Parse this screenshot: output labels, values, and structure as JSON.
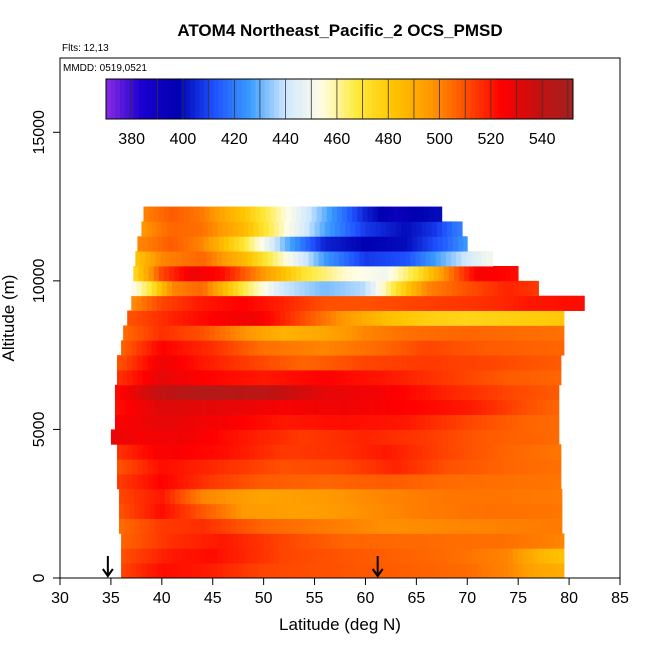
{
  "chart_data": {
    "type": "heatmap",
    "title": "ATOM4 Northeast_Pacific_2 OCS_PMSD",
    "flights_note": "Flts: 12,13",
    "date_note": "MMDD: 0519,0521",
    "xlabel": "Latitude (deg N)",
    "ylabel": "Altitude (m)",
    "xlim": [
      30,
      85
    ],
    "ylim": [
      0,
      17500
    ],
    "x_ticks": [
      "30",
      "35",
      "40",
      "45",
      "50",
      "55",
      "60",
      "65",
      "70",
      "75",
      "80",
      "85"
    ],
    "y_ticks": [
      "0",
      "5000",
      "10000",
      "15000"
    ],
    "y_tick_values": [
      0,
      5000,
      10000,
      15000
    ],
    "colorbar": {
      "min": 370,
      "max": 552,
      "tick_labels": [
        "380",
        "400",
        "420",
        "440",
        "460",
        "480",
        "500",
        "520",
        "540"
      ],
      "tick_values": [
        380,
        400,
        420,
        440,
        460,
        480,
        500,
        520,
        540
      ],
      "colors": [
        "#8a2be2",
        "#1a00d0",
        "#0000b0",
        "#1e50ff",
        "#3a9bff",
        "#cfe8ff",
        "#fffde6",
        "#ffe93a",
        "#ffc400",
        "#ff9a00",
        "#ff5000",
        "#ff0000",
        "#c51010",
        "#a52020"
      ]
    },
    "arrows_latitude": [
      34.7,
      61.2
    ],
    "layers": [
      {
        "alt_bottom": 0,
        "alt_top": 500,
        "lat_start": 36.0,
        "lat_end": 79.5,
        "profile": [
          [
            36,
            512
          ],
          [
            40,
            522
          ],
          [
            44,
            520
          ],
          [
            50,
            512
          ],
          [
            56,
            510
          ],
          [
            62,
            508
          ],
          [
            70,
            505
          ],
          [
            74,
            500
          ],
          [
            77,
            492
          ],
          [
            79.5,
            490
          ]
        ]
      },
      {
        "alt_bottom": 500,
        "alt_top": 1000,
        "lat_start": 36.0,
        "lat_end": 79.5,
        "profile": [
          [
            36,
            510
          ],
          [
            41,
            520
          ],
          [
            45,
            522
          ],
          [
            52,
            512
          ],
          [
            60,
            508
          ],
          [
            68,
            505
          ],
          [
            74,
            500
          ],
          [
            77,
            488
          ],
          [
            79.5,
            482
          ]
        ]
      },
      {
        "alt_bottom": 1000,
        "alt_top": 1500,
        "lat_start": 36.0,
        "lat_end": 79.5,
        "profile": [
          [
            36,
            506
          ],
          [
            41,
            516
          ],
          [
            46,
            520
          ],
          [
            52,
            512
          ],
          [
            58,
            506
          ],
          [
            66,
            505
          ],
          [
            74,
            504
          ],
          [
            79.5,
            500
          ]
        ]
      },
      {
        "alt_bottom": 1500,
        "alt_top": 2000,
        "lat_start": 35.8,
        "lat_end": 79.3,
        "profile": [
          [
            36,
            505
          ],
          [
            40,
            514
          ],
          [
            44,
            516
          ],
          [
            50,
            506
          ],
          [
            56,
            502
          ],
          [
            62,
            498
          ],
          [
            70,
            500
          ],
          [
            79,
            502
          ]
        ]
      },
      {
        "alt_bottom": 2000,
        "alt_top": 2500,
        "lat_start": 35.8,
        "lat_end": 79.3,
        "profile": [
          [
            36,
            510
          ],
          [
            40,
            522
          ],
          [
            43,
            512
          ],
          [
            48,
            496
          ],
          [
            54,
            494
          ],
          [
            60,
            498
          ],
          [
            66,
            502
          ],
          [
            72,
            504
          ],
          [
            79,
            503
          ]
        ]
      },
      {
        "alt_bottom": 2500,
        "alt_top": 3000,
        "lat_start": 35.8,
        "lat_end": 79.3,
        "profile": [
          [
            36,
            512
          ],
          [
            40,
            520
          ],
          [
            44,
            500
          ],
          [
            50,
            493
          ],
          [
            56,
            496
          ],
          [
            62,
            500
          ],
          [
            68,
            503
          ],
          [
            74,
            503
          ],
          [
            79,
            502
          ]
        ]
      },
      {
        "alt_bottom": 3000,
        "alt_top": 3500,
        "lat_start": 35.6,
        "lat_end": 79.2,
        "profile": [
          [
            36,
            514
          ],
          [
            40,
            524
          ],
          [
            45,
            514
          ],
          [
            50,
            508
          ],
          [
            56,
            506
          ],
          [
            62,
            508
          ],
          [
            68,
            505
          ],
          [
            74,
            504
          ],
          [
            79,
            503
          ]
        ]
      },
      {
        "alt_bottom": 3500,
        "alt_top": 4000,
        "lat_start": 35.6,
        "lat_end": 79.2,
        "profile": [
          [
            36,
            510
          ],
          [
            40,
            522
          ],
          [
            46,
            516
          ],
          [
            52,
            510
          ],
          [
            58,
            512
          ],
          [
            63,
            518
          ],
          [
            68,
            510
          ],
          [
            74,
            506
          ],
          [
            79,
            504
          ]
        ]
      },
      {
        "alt_bottom": 4000,
        "alt_top": 4500,
        "lat_start": 35.6,
        "lat_end": 79.2,
        "profile": [
          [
            36,
            516
          ],
          [
            40,
            526
          ],
          [
            46,
            522
          ],
          [
            52,
            514
          ],
          [
            58,
            516
          ],
          [
            62,
            520
          ],
          [
            68,
            512
          ],
          [
            74,
            506
          ],
          [
            79,
            503
          ]
        ]
      },
      {
        "alt_bottom": 4500,
        "alt_top": 5000,
        "lat_start": 35.0,
        "lat_end": 79.0,
        "profile": [
          [
            35,
            530
          ],
          [
            38,
            526
          ],
          [
            42,
            528
          ],
          [
            48,
            520
          ],
          [
            54,
            514
          ],
          [
            60,
            518
          ],
          [
            66,
            514
          ],
          [
            72,
            508
          ],
          [
            79,
            505
          ]
        ]
      },
      {
        "alt_bottom": 5000,
        "alt_top": 5500,
        "lat_start": 35.4,
        "lat_end": 79.0,
        "profile": [
          [
            35,
            524
          ],
          [
            40,
            530
          ],
          [
            46,
            526
          ],
          [
            52,
            520
          ],
          [
            58,
            522
          ],
          [
            64,
            520
          ],
          [
            70,
            512
          ],
          [
            76,
            506
          ],
          [
            79,
            505
          ]
        ]
      },
      {
        "alt_bottom": 5500,
        "alt_top": 6000,
        "lat_start": 35.4,
        "lat_end": 79.0,
        "profile": [
          [
            35,
            520
          ],
          [
            40,
            532
          ],
          [
            46,
            530
          ],
          [
            52,
            526
          ],
          [
            58,
            528
          ],
          [
            64,
            524
          ],
          [
            70,
            520
          ],
          [
            76,
            510
          ],
          [
            79,
            506
          ]
        ]
      },
      {
        "alt_bottom": 6000,
        "alt_top": 6500,
        "lat_start": 35.4,
        "lat_end": 79.0,
        "profile": [
          [
            35,
            520
          ],
          [
            40,
            540
          ],
          [
            44,
            546
          ],
          [
            50,
            542
          ],
          [
            56,
            530
          ],
          [
            62,
            526
          ],
          [
            68,
            518
          ],
          [
            74,
            512
          ],
          [
            79,
            508
          ]
        ]
      },
      {
        "alt_bottom": 6500,
        "alt_top": 7000,
        "lat_start": 35.6,
        "lat_end": 79.2,
        "profile": [
          [
            36,
            516
          ],
          [
            40,
            530
          ],
          [
            44,
            524
          ],
          [
            50,
            520
          ],
          [
            56,
            524
          ],
          [
            62,
            520
          ],
          [
            68,
            514
          ],
          [
            74,
            508
          ],
          [
            79,
            506
          ]
        ]
      },
      {
        "alt_bottom": 7000,
        "alt_top": 7500,
        "lat_start": 35.6,
        "lat_end": 79.2,
        "profile": [
          [
            36,
            510
          ],
          [
            40,
            528
          ],
          [
            44,
            520
          ],
          [
            48,
            514
          ],
          [
            54,
            506
          ],
          [
            60,
            512
          ],
          [
            66,
            514
          ],
          [
            72,
            512
          ],
          [
            79,
            508
          ]
        ]
      },
      {
        "alt_bottom": 7500,
        "alt_top": 8000,
        "lat_start": 36.0,
        "lat_end": 79.5,
        "profile": [
          [
            36,
            506
          ],
          [
            40,
            524
          ],
          [
            45,
            516
          ],
          [
            50,
            504
          ],
          [
            56,
            500
          ],
          [
            62,
            506
          ],
          [
            66,
            512
          ],
          [
            72,
            508
          ],
          [
            79,
            506
          ]
        ]
      },
      {
        "alt_bottom": 8000,
        "alt_top": 8500,
        "lat_start": 36.2,
        "lat_end": 79.5,
        "profile": [
          [
            36,
            504
          ],
          [
            40,
            516
          ],
          [
            44,
            510
          ],
          [
            48,
            498
          ],
          [
            52,
            488
          ],
          [
            56,
            492
          ],
          [
            60,
            500
          ],
          [
            64,
            504
          ],
          [
            70,
            506
          ],
          [
            79,
            504
          ]
        ]
      },
      {
        "alt_bottom": 8500,
        "alt_top": 9000,
        "lat_start": 36.6,
        "lat_end": 79.5,
        "profile": [
          [
            37,
            510
          ],
          [
            41,
            518
          ],
          [
            45,
            524
          ],
          [
            49,
            528
          ],
          [
            53,
            514
          ],
          [
            58,
            496
          ],
          [
            62,
            484
          ],
          [
            66,
            478
          ],
          [
            70,
            476
          ],
          [
            74,
            478
          ],
          [
            79,
            480
          ]
        ]
      },
      {
        "alt_bottom": 9000,
        "alt_top": 9500,
        "lat_start": 37.0,
        "lat_end": 81.5,
        "profile": [
          [
            37,
            498
          ],
          [
            40,
            512
          ],
          [
            44,
            520
          ],
          [
            48,
            524
          ],
          [
            52,
            518
          ],
          [
            56,
            510
          ],
          [
            60,
            510
          ],
          [
            64,
            512
          ],
          [
            68,
            514
          ],
          [
            72,
            516
          ],
          [
            76,
            520
          ],
          [
            81,
            522
          ]
        ]
      },
      {
        "alt_bottom": 9500,
        "alt_top": 10000,
        "lat_start": 37.0,
        "lat_end": 77.0,
        "profile": [
          [
            37,
            450
          ],
          [
            39,
            470
          ],
          [
            41,
            500
          ],
          [
            44,
            506
          ],
          [
            48,
            468
          ],
          [
            52,
            440
          ],
          [
            56,
            432
          ],
          [
            60,
            438
          ],
          [
            63,
            470
          ],
          [
            66,
            500
          ],
          [
            70,
            510
          ],
          [
            74,
            518
          ],
          [
            77,
            514
          ]
        ]
      },
      {
        "alt_bottom": 10000,
        "alt_top": 10500,
        "lat_start": 37.2,
        "lat_end": 75.0,
        "profile": [
          [
            37,
            470
          ],
          [
            40,
            512
          ],
          [
            43,
            528
          ],
          [
            46,
            522
          ],
          [
            50,
            496
          ],
          [
            54,
            470
          ],
          [
            58,
            456
          ],
          [
            62,
            450
          ],
          [
            65,
            470
          ],
          [
            68,
            500
          ],
          [
            71,
            526
          ],
          [
            75,
            522
          ]
        ]
      },
      {
        "alt_bottom": 10500,
        "alt_top": 11000,
        "lat_start": 37.4,
        "lat_end": 72.5,
        "profile": [
          [
            37,
            478
          ],
          [
            40,
            500
          ],
          [
            44,
            506
          ],
          [
            48,
            486
          ],
          [
            52,
            456
          ],
          [
            56,
            426
          ],
          [
            60,
            408
          ],
          [
            64,
            412
          ],
          [
            68,
            432
          ],
          [
            72,
            450
          ]
        ]
      },
      {
        "alt_bottom": 11000,
        "alt_top": 11500,
        "lat_start": 37.6,
        "lat_end": 70.0,
        "profile": [
          [
            38,
            500
          ],
          [
            41,
            508
          ],
          [
            44,
            500
          ],
          [
            48,
            470
          ],
          [
            52,
            432
          ],
          [
            56,
            404
          ],
          [
            60,
            398
          ],
          [
            64,
            400
          ],
          [
            68,
            416
          ],
          [
            70,
            426
          ]
        ]
      },
      {
        "alt_bottom": 11500,
        "alt_top": 12000,
        "lat_start": 38.0,
        "lat_end": 69.5,
        "profile": [
          [
            38,
            496
          ],
          [
            41,
            506
          ],
          [
            44,
            504
          ],
          [
            48,
            486
          ],
          [
            52,
            456
          ],
          [
            56,
            428
          ],
          [
            60,
            408
          ],
          [
            64,
            400
          ],
          [
            67,
            408
          ],
          [
            69,
            420
          ]
        ]
      },
      {
        "alt_bottom": 12000,
        "alt_top": 12500,
        "lat_start": 38.2,
        "lat_end": 67.5,
        "profile": [
          [
            38,
            500
          ],
          [
            41,
            508
          ],
          [
            44,
            502
          ],
          [
            48,
            482
          ],
          [
            52,
            456
          ],
          [
            56,
            430
          ],
          [
            60,
            404
          ],
          [
            63,
            392
          ],
          [
            65,
            398
          ],
          [
            67,
            400
          ]
        ]
      }
    ]
  }
}
